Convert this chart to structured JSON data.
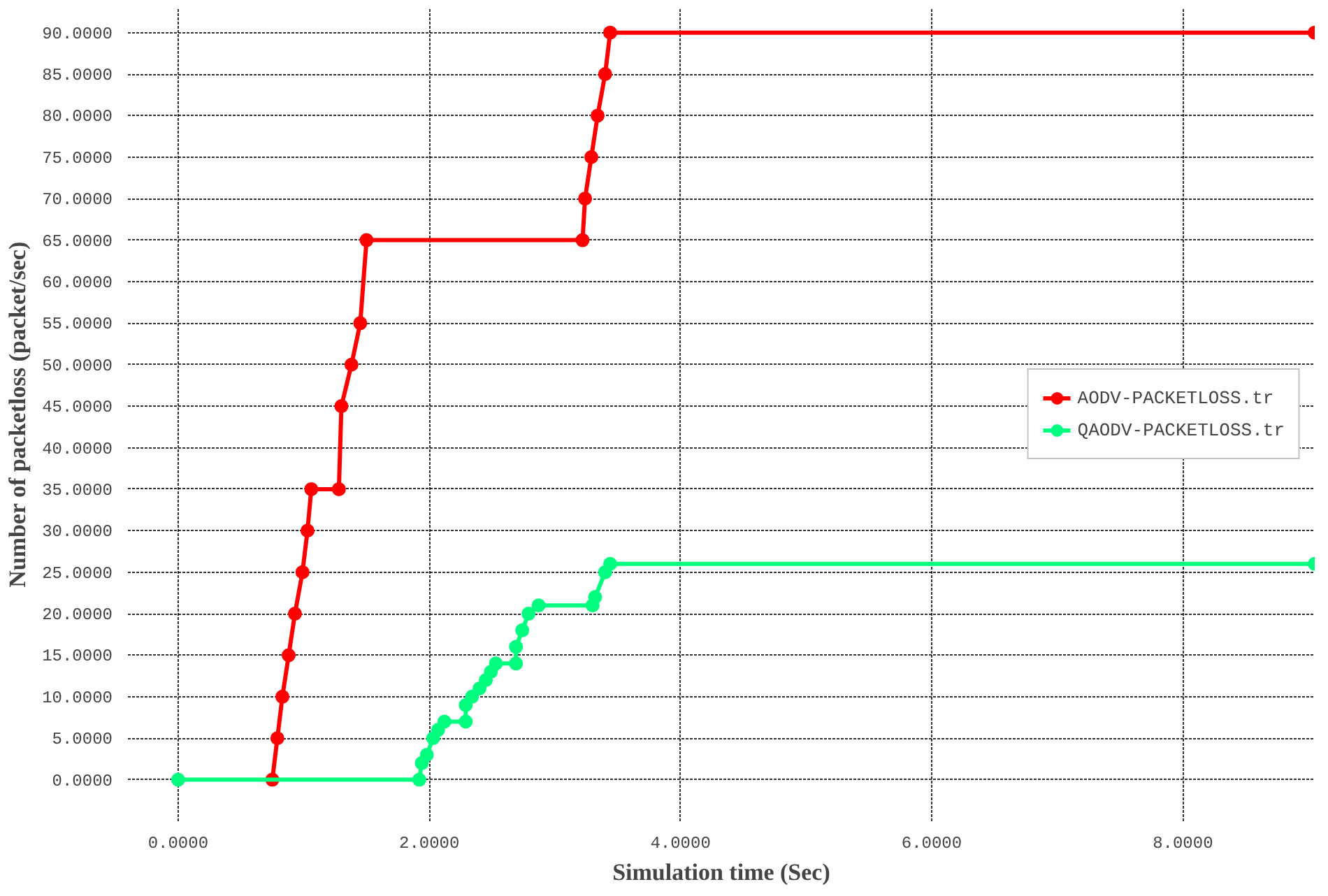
{
  "chart_data": {
    "type": "line",
    "xlabel": "Simulation time (Sec)",
    "ylabel": "Number of packetloss (packet/sec)",
    "series": [
      {
        "name": "AODV-PACKETLOSS.tr",
        "color": "#ff0000",
        "x": [
          0.75,
          0.79,
          0.83,
          0.88,
          0.93,
          0.99,
          1.03,
          1.06,
          1.28,
          1.3,
          1.38,
          1.45,
          1.5,
          3.22,
          3.24,
          3.29,
          3.34,
          3.4,
          3.44,
          9.05
        ],
        "values": [
          0,
          5,
          10,
          15,
          20,
          25,
          30,
          35,
          35,
          45,
          50,
          55,
          65,
          65,
          70,
          75,
          80,
          85,
          90,
          90
        ]
      },
      {
        "name": "QAODV-PACKETLOSS.tr",
        "color": "#00ff7f",
        "x": [
          0.0,
          1.92,
          1.94,
          1.98,
          2.03,
          2.07,
          2.12,
          2.29,
          2.29,
          2.34,
          2.4,
          2.45,
          2.49,
          2.53,
          2.69,
          2.69,
          2.74,
          2.79,
          2.87,
          3.3,
          3.32,
          3.4,
          3.44,
          9.05
        ],
        "values": [
          0,
          0,
          2,
          3,
          5,
          6,
          7,
          7,
          9,
          10,
          11,
          12,
          13,
          14,
          14,
          16,
          18,
          20,
          21,
          21,
          22,
          25,
          26,
          26
        ]
      }
    ],
    "xlim": [
      -0.4,
      9.05
    ],
    "ylim": [
      -5,
      93
    ],
    "xticks": [
      {
        "value": 0,
        "label": "0.0000"
      },
      {
        "value": 2,
        "label": "2.0000"
      },
      {
        "value": 4,
        "label": "4.0000"
      },
      {
        "value": 6,
        "label": "6.0000"
      },
      {
        "value": 8,
        "label": "8.0000"
      }
    ],
    "yticks": [
      {
        "value": 0,
        "label": "0.0000"
      },
      {
        "value": 5,
        "label": "5.0000"
      },
      {
        "value": 10,
        "label": "10.0000"
      },
      {
        "value": 15,
        "label": "15.0000"
      },
      {
        "value": 20,
        "label": "20.0000"
      },
      {
        "value": 25,
        "label": "25.0000"
      },
      {
        "value": 30,
        "label": "30.0000"
      },
      {
        "value": 35,
        "label": "35.0000"
      },
      {
        "value": 40,
        "label": "40.0000"
      },
      {
        "value": 45,
        "label": "45.0000"
      },
      {
        "value": 50,
        "label": "50.0000"
      },
      {
        "value": 55,
        "label": "55.0000"
      },
      {
        "value": 60,
        "label": "60.0000"
      },
      {
        "value": 65,
        "label": "65.0000"
      },
      {
        "value": 70,
        "label": "70.0000"
      },
      {
        "value": 75,
        "label": "75.0000"
      },
      {
        "value": 80,
        "label": "80.0000"
      },
      {
        "value": 85,
        "label": "85.0000"
      },
      {
        "value": 90,
        "label": "90.0000"
      }
    ],
    "grid": true,
    "legend": "right",
    "marker": "circle",
    "line_style": "solid"
  }
}
